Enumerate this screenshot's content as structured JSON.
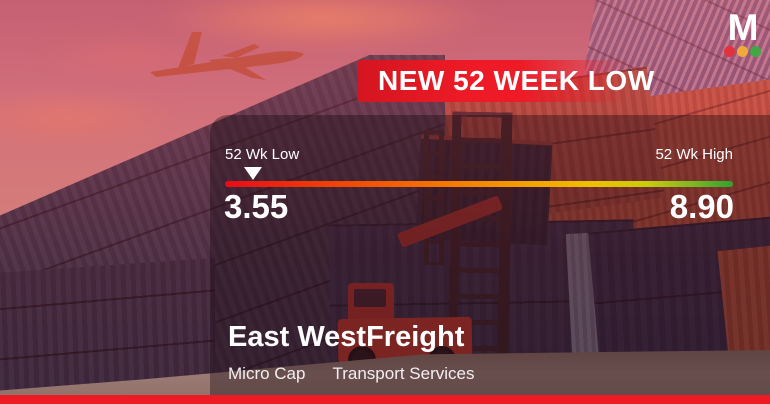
{
  "logo": {
    "letter": "M",
    "dots": [
      "#e2333c",
      "#f2a93b",
      "#3fa844"
    ]
  },
  "banner": {
    "label": "NEW 52 WEEK LOW",
    "color": "#ee1b26"
  },
  "gauge": {
    "low_label": "52 Wk Low",
    "high_label": "52 Wk High",
    "low_value": "3.55",
    "high_value": "8.90",
    "marker_position_pct": 5.5
  },
  "company": {
    "name": "East WestFreight",
    "cap_segment": "Micro Cap",
    "sector": "Transport Services"
  },
  "footer": {
    "bar_color": "#ee1b24"
  },
  "chart_data": {
    "type": "gauge",
    "title": "NEW 52 WEEK LOW",
    "subject": "East WestFreight",
    "low_label": "52 Wk Low",
    "high_label": "52 Wk High",
    "low": 3.55,
    "high": 8.9,
    "marker_value": 3.55,
    "bar_gradient": [
      "#e70c18",
      "#f66a00",
      "#edc100",
      "#2ea32f"
    ],
    "legend_position": "none",
    "grid": false
  }
}
